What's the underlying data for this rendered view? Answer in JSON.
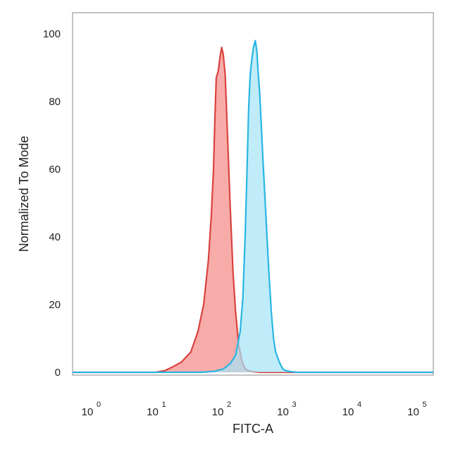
{
  "chart_data": {
    "type": "area",
    "xlabel": "FITC-A",
    "ylabel": "Normalized To Mode",
    "xscale": "log",
    "xlim": [
      0.5,
      300000
    ],
    "ylim": [
      0,
      100
    ],
    "x_ticks": [
      {
        "base": "10",
        "exp": "0"
      },
      {
        "base": "10",
        "exp": "1"
      },
      {
        "base": "10",
        "exp": "2"
      },
      {
        "base": "10",
        "exp": "3"
      },
      {
        "base": "10",
        "exp": "4"
      },
      {
        "base": "10",
        "exp": "5"
      }
    ],
    "y_ticks": [
      "0",
      "20",
      "40",
      "60",
      "80",
      "100"
    ],
    "grid": false,
    "legend": "none",
    "series": [
      {
        "color": "#d9423f",
        "fill": "#f7a3a0",
        "x": [
          0.5,
          10,
          14,
          18,
          25,
          35,
          45,
          55,
          65,
          72,
          78,
          82,
          86,
          92,
          98,
          104,
          110,
          118,
          128,
          140,
          155,
          170,
          190,
          215,
          240,
          270,
          300,
          350,
          400,
          1000000
        ],
        "y": [
          0,
          0,
          0.5,
          1.5,
          3,
          6,
          12,
          20,
          33,
          46,
          60,
          75,
          87,
          89,
          93,
          96,
          94,
          88,
          70,
          50,
          30,
          18,
          8,
          3,
          1,
          0.5,
          0.2,
          0.1,
          0,
          0
        ]
      },
      {
        "color": "#29b6e3",
        "fill": "#a5e2f6",
        "x": [
          0.5,
          50,
          80,
          110,
          140,
          170,
          200,
          220,
          240,
          255,
          270,
          285,
          300,
          320,
          340,
          360,
          380,
          400,
          450,
          500,
          550,
          600,
          650,
          700,
          800,
          900,
          1000,
          1200,
          1500,
          300000
        ],
        "y": [
          0,
          0,
          0.3,
          1,
          2.5,
          5,
          12,
          22,
          42,
          60,
          78,
          88,
          92,
          96,
          98,
          95,
          88,
          82,
          62,
          45,
          30,
          18,
          10,
          6,
          3,
          1,
          0.5,
          0.2,
          0,
          0
        ]
      }
    ]
  }
}
